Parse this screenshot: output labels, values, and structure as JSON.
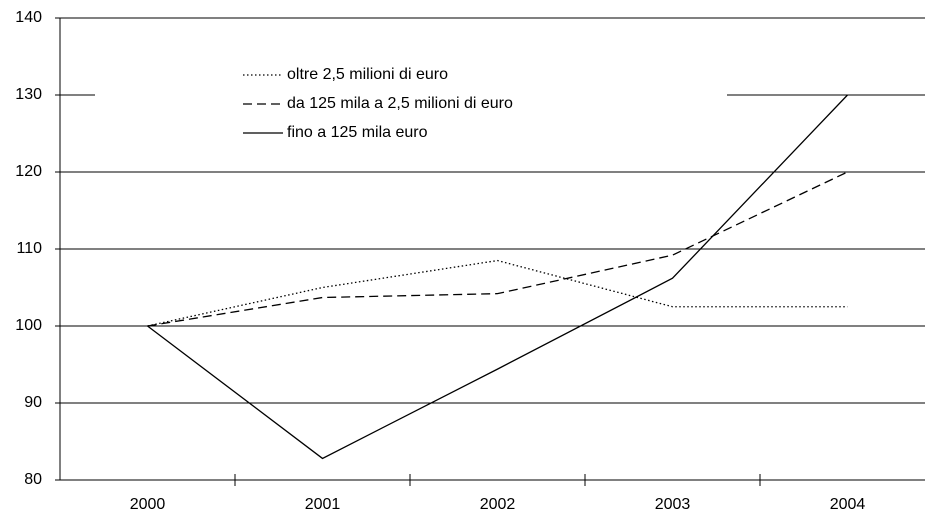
{
  "chart_data": {
    "type": "line",
    "categories": [
      "2000",
      "2001",
      "2002",
      "2003",
      "2004"
    ],
    "series": [
      {
        "name": "oltre 2,5 milioni di euro",
        "color": "#000000",
        "dash": "dotted",
        "values": [
          100,
          105,
          108.5,
          102.5,
          102.5
        ]
      },
      {
        "name": "da 125 mila a 2,5 milioni di euro",
        "color": "#000000",
        "dash": "dashed",
        "values": [
          100,
          103.7,
          104.2,
          109.2,
          120
        ]
      },
      {
        "name": "fino a 125 mila euro",
        "color": "#000000",
        "dash": "solid",
        "values": [
          100,
          82.8,
          94.4,
          106.2,
          130
        ]
      }
    ],
    "ylim": [
      80,
      140
    ],
    "yticks": [
      80,
      90,
      100,
      110,
      120,
      130,
      140
    ],
    "grid": true
  }
}
